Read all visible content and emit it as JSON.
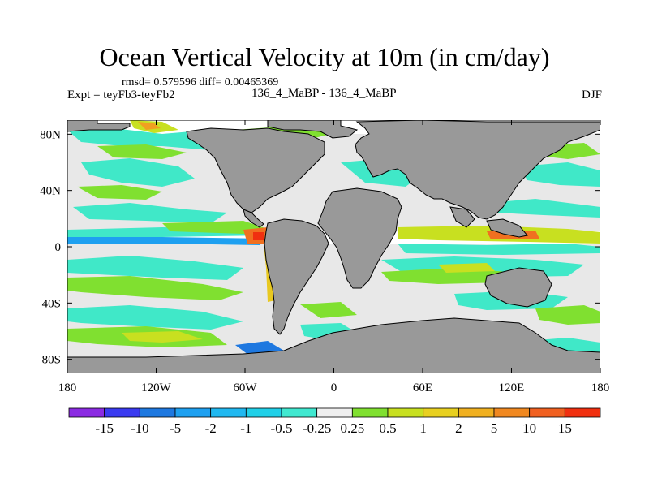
{
  "title": "Ocean Vertical Velocity at 10m (in cm/day)",
  "stats": "rmsd= 0.579596 diff= 0.00465369",
  "left_label": "Expt = teyFb3-teyFb2",
  "center_label": "136_4_MaBP - 136_4_MaBP",
  "right_label": "DJF",
  "map": {
    "lon_ticks": [
      "180",
      "120W",
      "60W",
      "0",
      "60E",
      "120E",
      "180"
    ],
    "lat_ticks": [
      "80N",
      "40N",
      "0",
      "40S",
      "80S"
    ],
    "land_color": "#999999",
    "ocean_base_color": "#ffffff"
  },
  "colorbar": {
    "labels": [
      "-15",
      "-10",
      "-5",
      "-2",
      "-1",
      "-0.5",
      "-0.25",
      "0.25",
      "0.5",
      "1",
      "2",
      "5",
      "10",
      "15"
    ],
    "colors": [
      "#8b2be2",
      "#3a3af0",
      "#1e78e0",
      "#1ea0f0",
      "#20c8e8",
      "#30e0d8",
      "#40e8c0",
      "#efefef",
      "#80e030",
      "#c8e020",
      "#e8c820",
      "#f0a020",
      "#f07020",
      "#f03010"
    ]
  }
}
